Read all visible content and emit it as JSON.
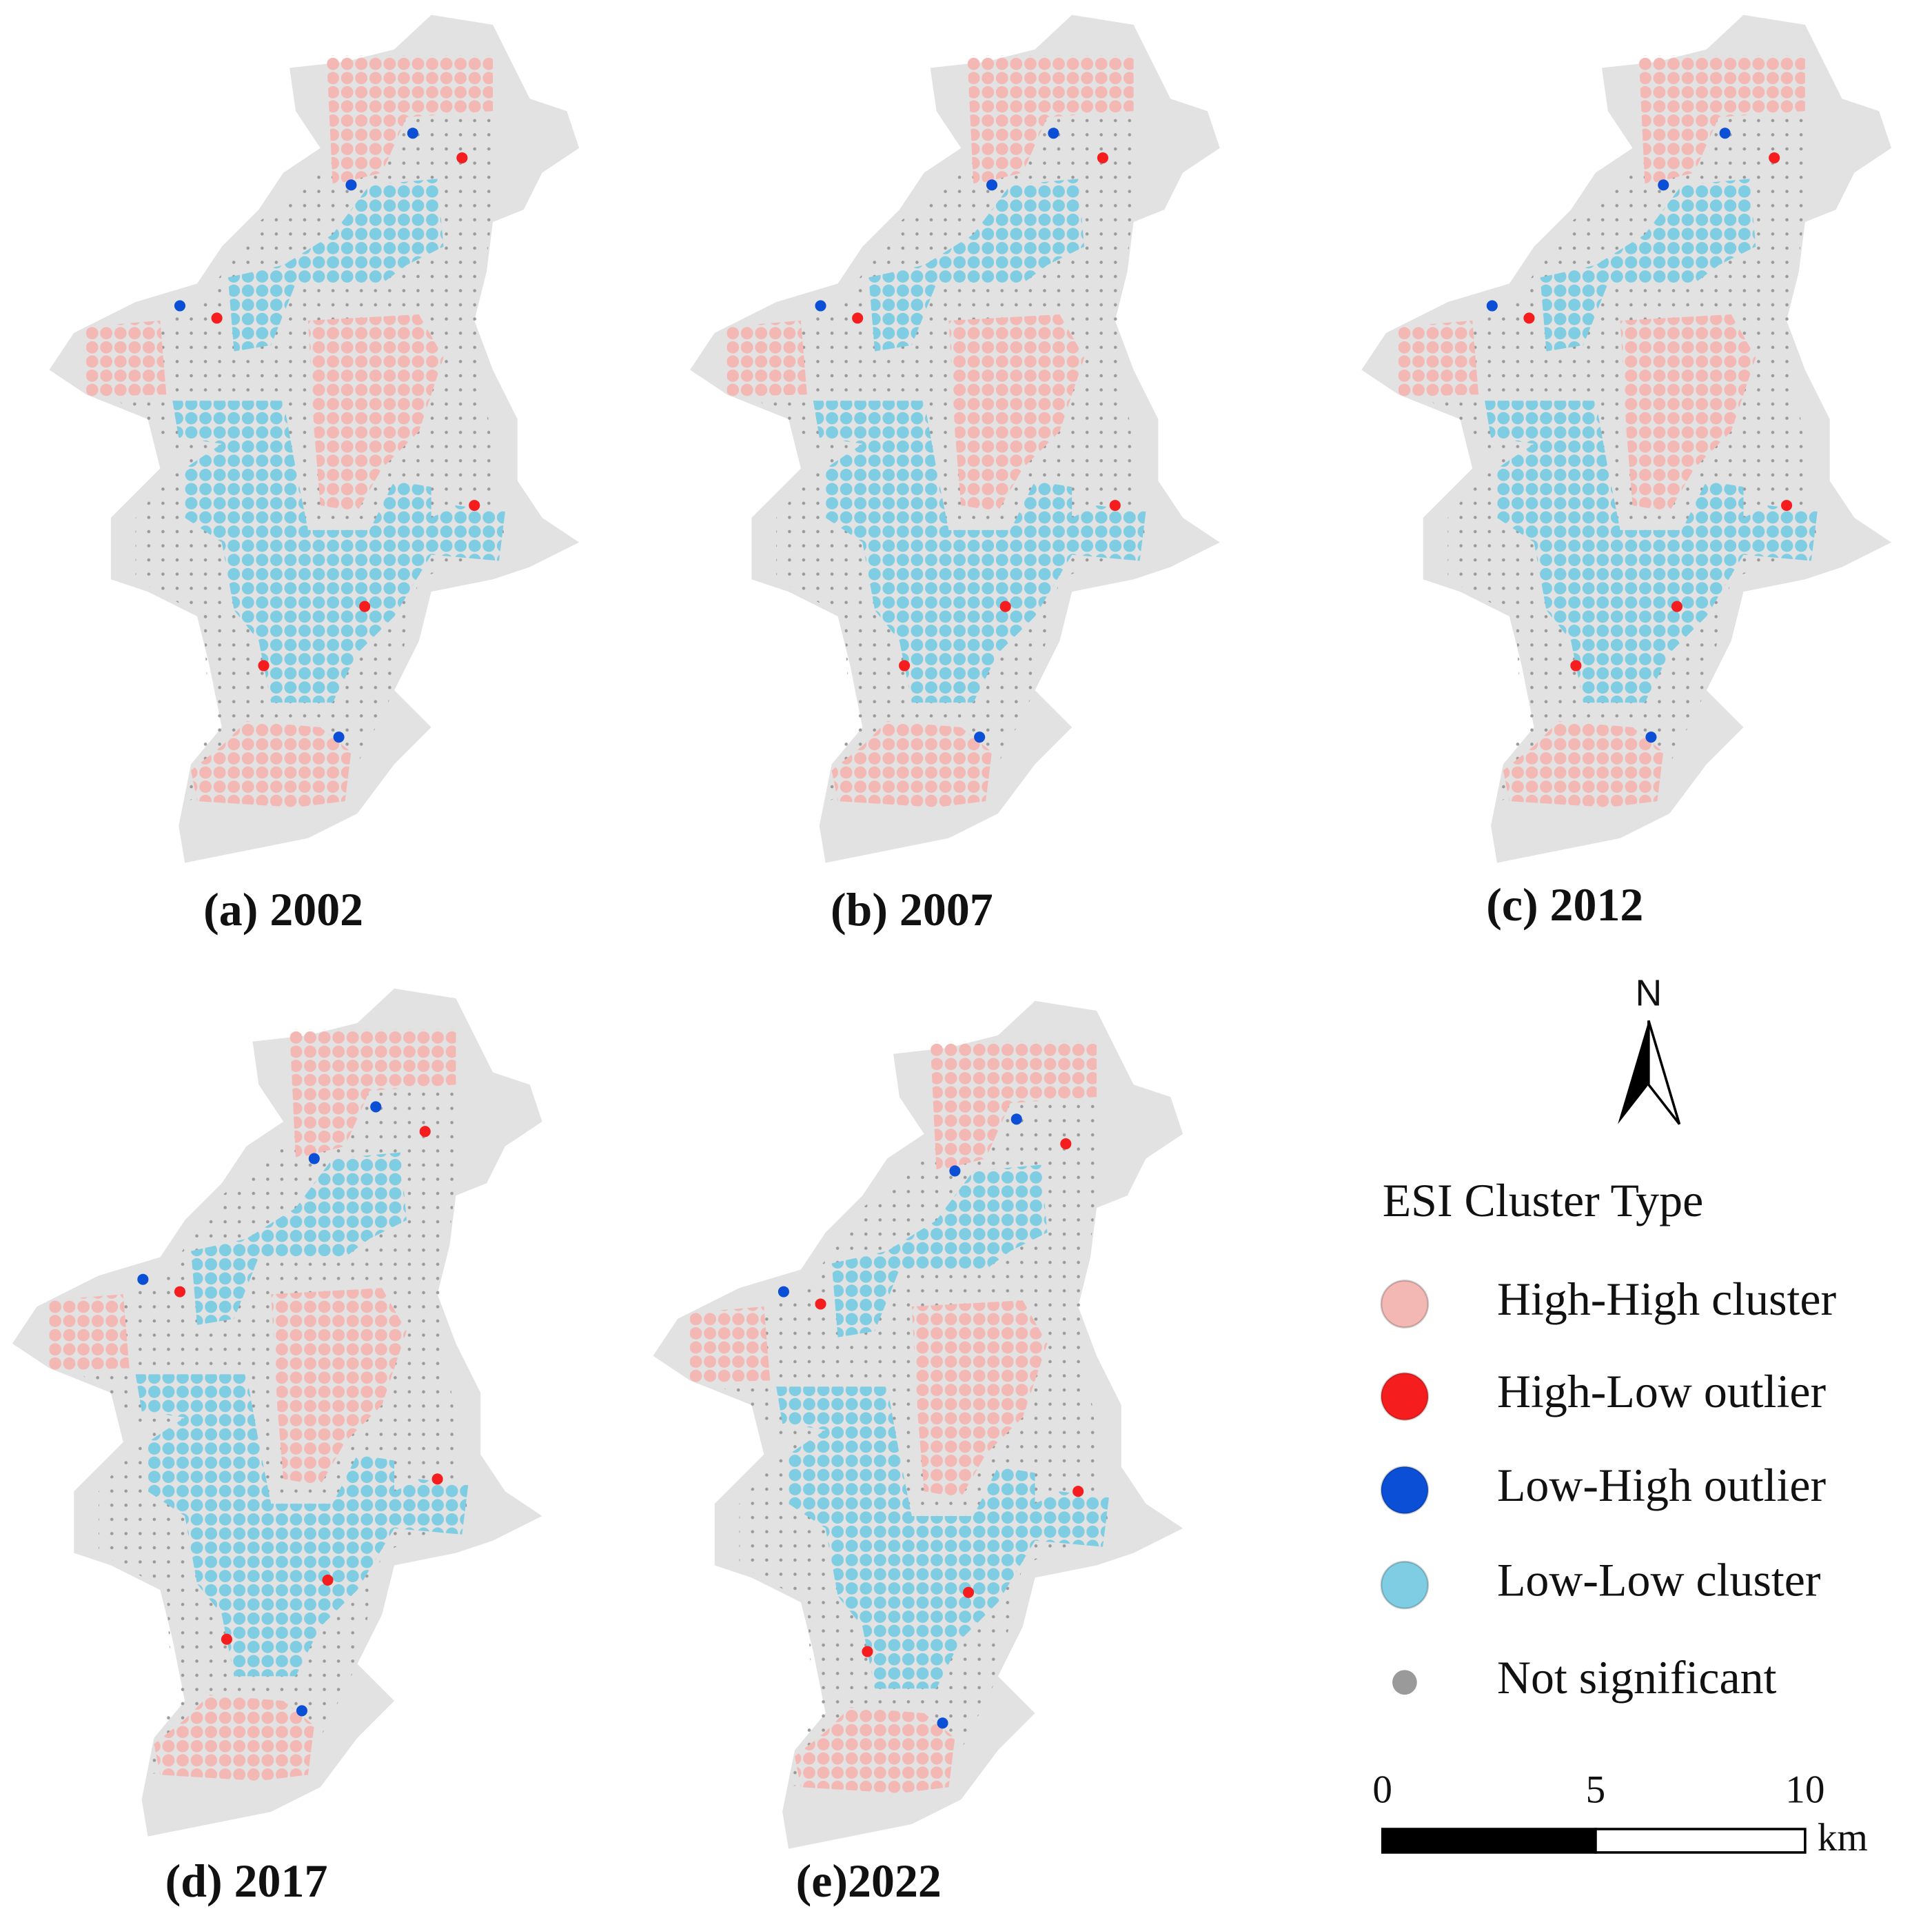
{
  "panels": [
    {
      "label": "(a) 2002"
    },
    {
      "label": "(b) 2007"
    },
    {
      "label": "(c) 2012"
    },
    {
      "label": "(d) 2017"
    },
    {
      "label": "(e)2022"
    }
  ],
  "north_arrow": {
    "label": "N"
  },
  "legend": {
    "title": "ESI Cluster Type",
    "items": [
      {
        "label": "High-High cluster",
        "color": "#f4b8b4"
      },
      {
        "label": "High-Low outlier",
        "color": "#f51d1d"
      },
      {
        "label": "Low-High outlier",
        "color": "#0a4fd6"
      },
      {
        "label": "Low-Low cluster",
        "color": "#7fcde3"
      },
      {
        "label": "Not significant",
        "color": "#9a9a9a"
      }
    ]
  },
  "scale_bar": {
    "ticks": [
      "0",
      "5",
      "10"
    ],
    "unit": "km"
  }
}
